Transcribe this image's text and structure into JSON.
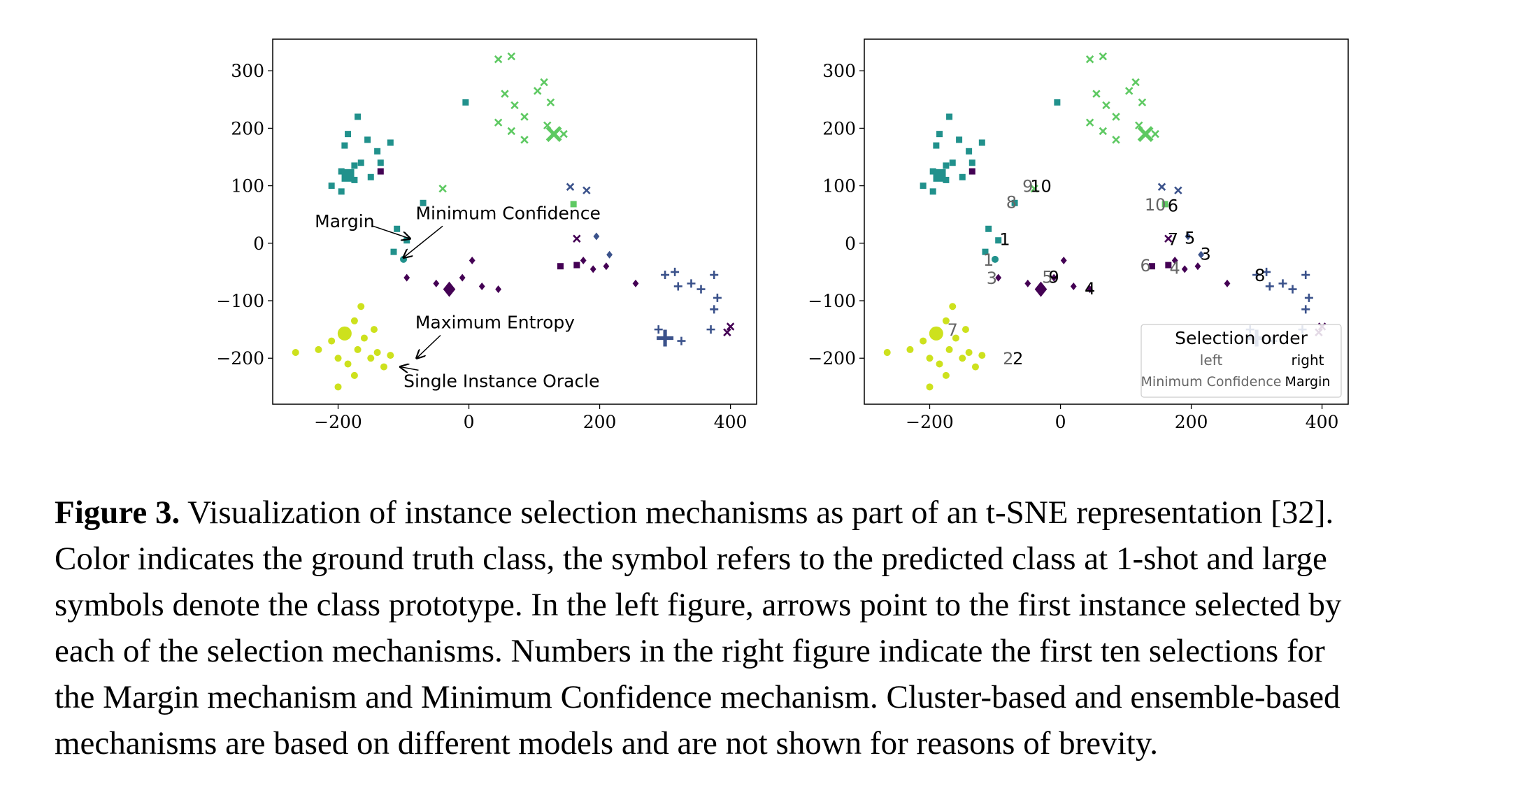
{
  "colors": {
    "c0": "#440154",
    "c1": "#3b528b",
    "c2": "#21918c",
    "c3": "#5ec962",
    "c4": "#cde11d",
    "ink": "#000000",
    "grey": "#666666"
  },
  "icons": [
    "arrow-annotation-icon",
    "legend-box"
  ],
  "chart_data": [
    {
      "type": "scatter",
      "panel": "left",
      "xlim": [
        -300,
        440
      ],
      "ylim": [
        -280,
        355
      ],
      "xticks": [
        -200,
        0,
        200,
        400
      ],
      "yticks": [
        300,
        200,
        100,
        0,
        -100,
        -200
      ],
      "xtick_labels": [
        "−200",
        "0",
        "200",
        "400"
      ],
      "ytick_labels": [
        "300",
        "200",
        "100",
        "0",
        "−100",
        "−200"
      ],
      "marker_legend": {
        "0": "diamond",
        "1": "plus",
        "2": "square",
        "3": "x",
        "4": "circle"
      },
      "series": [
        {
          "gt": 4,
          "pred": 4,
          "points": [
            [
              -265,
              -190
            ],
            [
              -230,
              -185
            ],
            [
              -210,
              -170
            ],
            [
              -200,
              -200
            ],
            [
              -185,
              -210
            ],
            [
              -170,
              -185
            ],
            [
              -160,
              -165
            ],
            [
              -150,
              -200
            ],
            [
              -140,
              -190
            ],
            [
              -130,
              -215
            ],
            [
              -120,
              -195
            ],
            [
              -175,
              -135
            ],
            [
              -165,
              -110
            ],
            [
              -175,
              -230
            ],
            [
              -200,
              -250
            ],
            [
              -145,
              -150
            ]
          ]
        },
        {
          "gt": 4,
          "pred": 4,
          "prototype": true,
          "points": [
            [
              -190,
              -157
            ]
          ]
        },
        {
          "gt": 2,
          "pred": 2,
          "points": [
            [
              -210,
              100
            ],
            [
              -195,
              90
            ],
            [
              -195,
              125
            ],
            [
              -190,
              170
            ],
            [
              -185,
              190
            ],
            [
              -170,
              220
            ],
            [
              -175,
              110
            ],
            [
              -165,
              140
            ],
            [
              -155,
              180
            ],
            [
              -140,
              160
            ],
            [
              -135,
              140
            ],
            [
              -120,
              175
            ],
            [
              -175,
              135
            ],
            [
              -150,
              115
            ],
            [
              -110,
              25
            ],
            [
              -115,
              -15
            ],
            [
              -95,
              5
            ],
            [
              -70,
              70
            ],
            [
              -5,
              245
            ]
          ]
        },
        {
          "gt": 2,
          "pred": 2,
          "prototype": true,
          "points": [
            [
              -185,
              118
            ]
          ]
        },
        {
          "gt": 2,
          "pred": 4,
          "points": [
            [
              -100,
              -28
            ]
          ]
        },
        {
          "gt": 3,
          "pred": 3,
          "points": [
            [
              45,
              320
            ],
            [
              65,
              325
            ],
            [
              55,
              260
            ],
            [
              70,
              240
            ],
            [
              85,
              220
            ],
            [
              45,
              210
            ],
            [
              65,
              195
            ],
            [
              85,
              180
            ],
            [
              105,
              265
            ],
            [
              115,
              280
            ],
            [
              125,
              245
            ],
            [
              120,
              205
            ],
            [
              145,
              190
            ],
            [
              -40,
              95
            ]
          ]
        },
        {
          "gt": 3,
          "pred": 3,
          "prototype": true,
          "points": [
            [
              130,
              190
            ]
          ]
        },
        {
          "gt": 3,
          "pred": 2,
          "points": [
            [
              160,
              68
            ]
          ]
        },
        {
          "gt": 0,
          "pred": 0,
          "points": [
            [
              -95,
              -60
            ],
            [
              -50,
              -70
            ],
            [
              -10,
              -60
            ],
            [
              5,
              -30
            ],
            [
              20,
              -75
            ],
            [
              45,
              -80
            ],
            [
              175,
              -30
            ],
            [
              190,
              -45
            ],
            [
              210,
              -40
            ],
            [
              255,
              -70
            ]
          ]
        },
        {
          "gt": 0,
          "pred": 0,
          "prototype": true,
          "points": [
            [
              -30,
              -80
            ]
          ]
        },
        {
          "gt": 0,
          "pred": 2,
          "points": [
            [
              140,
              -40
            ],
            [
              165,
              -38
            ],
            [
              -135,
              125
            ]
          ]
        },
        {
          "gt": 0,
          "pred": 3,
          "points": [
            [
              165,
              8
            ],
            [
              395,
              -155
            ],
            [
              400,
              -145
            ]
          ]
        },
        {
          "gt": 1,
          "pred": 1,
          "points": [
            [
              300,
              -55
            ],
            [
              315,
              -50
            ],
            [
              320,
              -75
            ],
            [
              340,
              -70
            ],
            [
              355,
              -80
            ],
            [
              375,
              -55
            ],
            [
              380,
              -95
            ],
            [
              375,
              -115
            ],
            [
              370,
              -150
            ],
            [
              325,
              -170
            ],
            [
              290,
              -150
            ]
          ]
        },
        {
          "gt": 1,
          "pred": 1,
          "prototype": true,
          "points": [
            [
              300,
              -165
            ]
          ]
        },
        {
          "gt": 1,
          "pred": 3,
          "points": [
            [
              155,
              98
            ],
            [
              180,
              92
            ]
          ]
        },
        {
          "gt": 1,
          "pred": 0,
          "points": [
            [
              215,
              -20
            ],
            [
              195,
              12
            ]
          ]
        }
      ],
      "annotations": [
        {
          "text": "Margin",
          "xy": [
            -90,
            8
          ],
          "xytext": [
            -190,
            28
          ]
        },
        {
          "text": "Minimum Confidence",
          "xy": [
            -100,
            -25
          ],
          "xytext": [
            60,
            42
          ]
        },
        {
          "text": "Maximum Entropy",
          "xy": [
            -80,
            -200
          ],
          "xytext": [
            40,
            -148
          ]
        },
        {
          "text": "Single Instance Oracle",
          "xy": [
            -105,
            -215
          ],
          "xytext": [
            50,
            -250
          ]
        }
      ]
    },
    {
      "type": "scatter",
      "panel": "right",
      "xlim": [
        -300,
        440
      ],
      "ylim": [
        -280,
        355
      ],
      "xticks": [
        -200,
        0,
        200,
        400
      ],
      "yticks": [
        300,
        200,
        100,
        0,
        -100,
        -200
      ],
      "xtick_labels": [
        "−200",
        "0",
        "200",
        "400"
      ],
      "ytick_labels": [
        "300",
        "200",
        "100",
        "0",
        "−100",
        "−200"
      ],
      "same_points_as": "left",
      "selection_labels_left": [
        {
          "text": "1",
          "x": -110,
          "y": -28
        },
        {
          "text": "2",
          "x": -80,
          "y": -200
        },
        {
          "text": "3",
          "x": -105,
          "y": -60
        },
        {
          "text": "4",
          "x": 175,
          "y": -42
        },
        {
          "text": "5",
          "x": -20,
          "y": -58
        },
        {
          "text": "6",
          "x": 130,
          "y": -38
        },
        {
          "text": "7",
          "x": -165,
          "y": -150
        },
        {
          "text": "8",
          "x": -75,
          "y": 72
        },
        {
          "text": "9",
          "x": -50,
          "y": 100
        },
        {
          "text": "10",
          "x": 145,
          "y": 68
        }
      ],
      "selection_labels_right": [
        {
          "text": "1",
          "x": -85,
          "y": 8
        },
        {
          "text": "2",
          "x": -65,
          "y": -200
        },
        {
          "text": "3",
          "x": 222,
          "y": -18
        },
        {
          "text": "4",
          "x": 45,
          "y": -78
        },
        {
          "text": "5",
          "x": 198,
          "y": 10
        },
        {
          "text": "6",
          "x": 172,
          "y": 66
        },
        {
          "text": "7",
          "x": 172,
          "y": 8
        },
        {
          "text": "8",
          "x": 305,
          "y": -55
        },
        {
          "text": "9",
          "x": -10,
          "y": -58
        },
        {
          "text": "10",
          "x": -30,
          "y": 100
        }
      ],
      "legend": {
        "title": "Selection order",
        "placement": "lower right",
        "columns": [
          {
            "header": "left",
            "entry": "Minimum Confidence"
          },
          {
            "header": "right",
            "entry": "Margin"
          }
        ]
      }
    }
  ],
  "caption": {
    "label": "Figure 3.",
    "lines": [
      " Visualization of instance selection mechanisms as part of an t-SNE representation [32].",
      "Color indicates the ground truth class, the symbol refers to the predicted class at 1-shot and large",
      "symbols denote the class prototype. In the left figure, arrows point to the first instance selected by",
      "each of the selection mechanisms. Numbers in the right figure indicate the first ten selections for",
      "the Margin mechanism and Minimum Confidence mechanism. Cluster-based and ensemble-based",
      "mechanisms are based on different models and are not shown for reasons of brevity."
    ]
  }
}
